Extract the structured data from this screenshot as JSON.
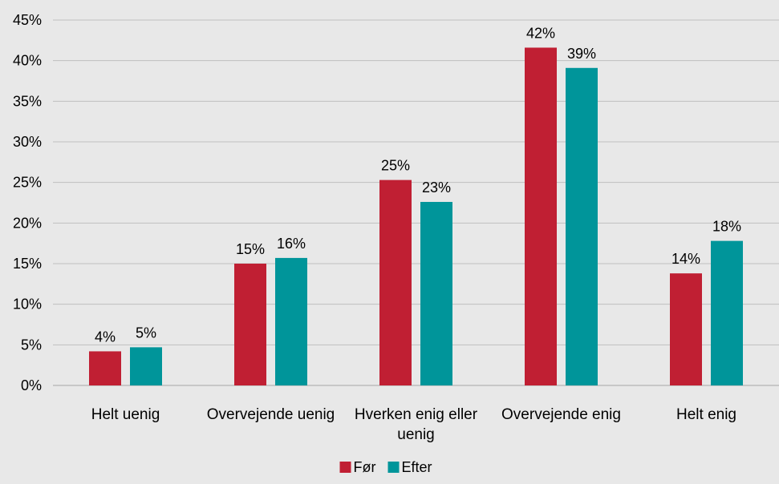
{
  "chart_data": {
    "type": "bar",
    "categories": [
      "Helt uenig",
      "Overvejende uenig",
      "Hverken enig eller uenig",
      "Overvejende enig",
      "Helt enig"
    ],
    "category_lines": [
      [
        "Helt uenig"
      ],
      [
        "Overvejende uenig"
      ],
      [
        "Hverken enig eller",
        "uenig"
      ],
      [
        "Overvejende enig"
      ],
      [
        "Helt enig"
      ]
    ],
    "series": [
      {
        "name": "Før",
        "color": "#c01f33",
        "values": [
          4.2,
          15.0,
          25.3,
          41.6,
          13.8
        ],
        "labels": [
          "4%",
          "15%",
          "25%",
          "42%",
          "14%"
        ]
      },
      {
        "name": "Efter",
        "color": "#00959a",
        "values": [
          4.7,
          15.7,
          22.6,
          39.1,
          17.8
        ],
        "labels": [
          "5%",
          "16%",
          "23%",
          "39%",
          "18%"
        ]
      }
    ],
    "ylim": [
      0,
      45
    ],
    "yticks": [
      0,
      5,
      10,
      15,
      20,
      25,
      30,
      35,
      40,
      45
    ],
    "ytick_labels": [
      "0%",
      "5%",
      "10%",
      "15%",
      "20%",
      "25%",
      "30%",
      "35%",
      "40%",
      "45%"
    ],
    "grid": true,
    "legend_position": "bottom",
    "title": "",
    "xlabel": "",
    "ylabel": ""
  }
}
